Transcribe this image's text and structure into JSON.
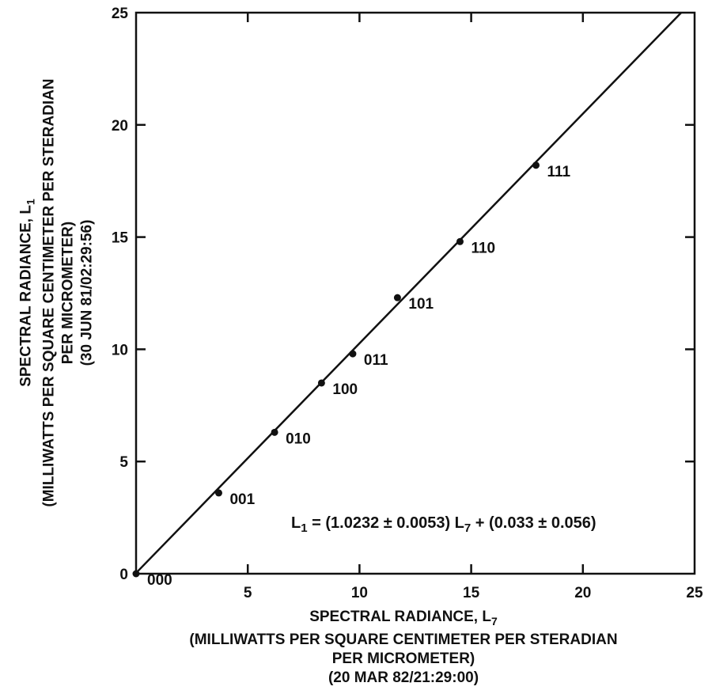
{
  "chart_data": {
    "type": "scatter",
    "xlim": [
      0,
      25
    ],
    "ylim": [
      0,
      25
    ],
    "x_ticks": [
      "5",
      "10",
      "15",
      "20",
      "25"
    ],
    "y_ticks": [
      "0",
      "5",
      "10",
      "15",
      "20",
      "25"
    ],
    "xlabel_lines": [
      "SPECTRAL RADIANCE, L7",
      "(MILLIWATTS PER SQUARE CENTIMETER PER STERADIAN",
      "PER MICROMETER)",
      "(20 MAR 82/21:29:00)"
    ],
    "ylabel_lines": [
      "SPECTRAL RADIANCE, L1",
      "(MILLIWATTS PER SQUARE CENTIMETER PER STERADIAN",
      "PER MICROMETER)",
      "(30 JUN 81/02:29:56)"
    ],
    "points": [
      {
        "label": "000",
        "x": 0.0,
        "y": 0.0
      },
      {
        "label": "001",
        "x": 3.7,
        "y": 3.6
      },
      {
        "label": "010",
        "x": 6.2,
        "y": 6.3
      },
      {
        "label": "100",
        "x": 8.3,
        "y": 8.5
      },
      {
        "label": "011",
        "x": 9.7,
        "y": 9.8
      },
      {
        "label": "101",
        "x": 11.7,
        "y": 12.3
      },
      {
        "label": "110",
        "x": 14.5,
        "y": 14.8
      },
      {
        "label": "111",
        "x": 17.9,
        "y": 18.2
      }
    ],
    "fit_line": {
      "slope": 1.0232,
      "intercept": 0.033
    },
    "equation": {
      "lhs": "L",
      "lhs_sub": "1",
      "rhs_part1": " = (1.0232 ± 0.0053) L",
      "rhs_sub": "7",
      "rhs_part2": " + (0.033 ± 0.056)"
    },
    "grid": false,
    "legend": "none"
  }
}
